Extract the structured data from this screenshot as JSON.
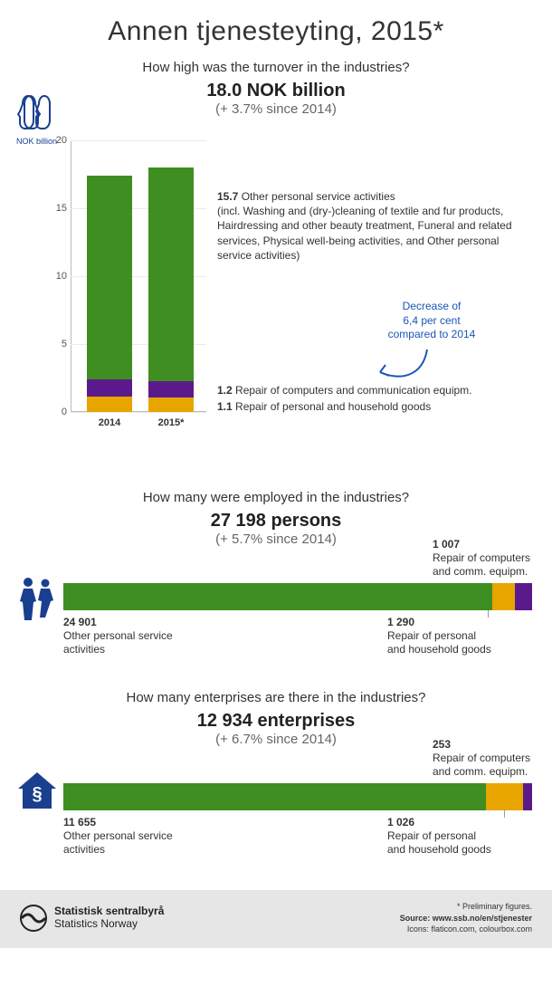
{
  "title": "Annen tjenesteyting, 2015*",
  "section1": {
    "heading": "How high was the turnover in the industries?",
    "headline": "18.0 NOK billion",
    "change": "(+ 3.7% since 2014)",
    "y_axis_label": "NOK billion",
    "gloves_caption": "NOK billion",
    "ylim": [
      0,
      20
    ],
    "yticks": [
      0,
      5,
      10,
      15,
      20
    ],
    "categories": [
      "2014",
      "2015*"
    ],
    "colors": {
      "other_personal": "#3e8e22",
      "repair_computers": "#5b1a8b",
      "repair_household": "#e8a500",
      "grid": "#eaeaea",
      "axis": "#bbbbbb",
      "accent_blue": "#1a56b8"
    },
    "bars": {
      "2014": {
        "repair_household": 1.15,
        "repair_computers": 1.28,
        "other_personal": 15.0
      },
      "2015": {
        "repair_household": 1.1,
        "repair_computers": 1.2,
        "other_personal": 15.7
      }
    },
    "annot_other": {
      "num": "15.7",
      "label": "Other personal service activities",
      "detail": "(incl. Washing and (dry-)cleaning of textile and fur products, Hairdressing and other beauty treatment, Funeral and related services, Physical well-being activities, and Other personal service activities)"
    },
    "annot_comp": {
      "num": "1.2",
      "label": "Repair of computers and communication equipm."
    },
    "annot_hh": {
      "num": "1.1",
      "label": "Repair of personal and household goods"
    },
    "decrease_note": "Decrease of\n6,4 per cent\ncompared to 2014"
  },
  "section2": {
    "heading": "How many were employed in the industries?",
    "headline": "27 198 persons",
    "change": "(+ 5.7% since 2014)",
    "total": 27198,
    "segments": [
      {
        "key": "other_personal",
        "value": 24901,
        "color": "#3e8e22",
        "num": "24 901",
        "label": "Other personal service activities"
      },
      {
        "key": "repair_household",
        "value": 1290,
        "color": "#e8a500",
        "num": "1 290",
        "label": "Repair of personal and household goods"
      },
      {
        "key": "repair_computers",
        "value": 1007,
        "color": "#5b1a8b",
        "num": "1 007",
        "label": "Repair of computers and comm. equipm."
      }
    ]
  },
  "section3": {
    "heading": "How many enterprises are there in the industries?",
    "headline": "12 934 enterprises",
    "change": "(+ 6.7% since 2014)",
    "total": 12934,
    "segments": [
      {
        "key": "other_personal",
        "value": 11655,
        "color": "#3e8e22",
        "num": "11 655",
        "label": "Other personal service activities"
      },
      {
        "key": "repair_household",
        "value": 1026,
        "color": "#e8a500",
        "num": "1 026",
        "label": "Repair of personal and household goods"
      },
      {
        "key": "repair_computers",
        "value": 253,
        "color": "#5b1a8b",
        "num": "253",
        "label": "Repair of computers and comm. equipm."
      }
    ]
  },
  "footer": {
    "org_line1": "Statistisk sentralbyrå",
    "org_line2": "Statistics Norway",
    "note": "* Preliminary figures.",
    "source_label": "Source:",
    "source": "www.ssb.no/en/stjenester",
    "icons_label": "Icons:",
    "icons": "flaticon.com, colourbox.com"
  }
}
